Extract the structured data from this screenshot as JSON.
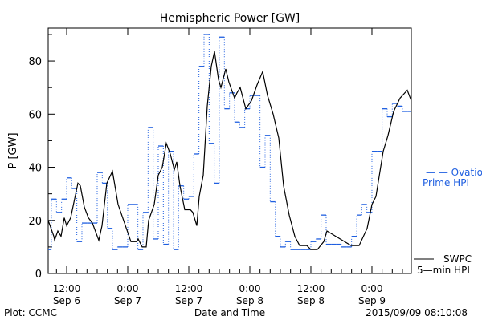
{
  "chart_data": {
    "type": "line",
    "title": "Hemispheric Power [GW]",
    "xlabel": "Date and Time",
    "ylabel": "P [GW]",
    "x_units": "hours since 2015-09-06 00:00",
    "xlim": [
      8.37,
      79.74
    ],
    "ylim": [
      0,
      92.4
    ],
    "y_ticks": [
      0,
      20,
      40,
      60,
      80
    ],
    "y_minor_step": 10,
    "x_ticks": [
      {
        "x": 12,
        "time": "12:00",
        "date": "Sep 6"
      },
      {
        "x": 24,
        "time": "0:00",
        "date": "Sep 7"
      },
      {
        "x": 36,
        "time": "12:00",
        "date": "Sep 7"
      },
      {
        "x": 48,
        "time": "0:00",
        "date": "Sep 8"
      },
      {
        "x": 60,
        "time": "12:00",
        "date": "Sep 8"
      },
      {
        "x": 72,
        "time": "0:00",
        "date": "Sep 9"
      }
    ],
    "x_minor_step": 2,
    "series": [
      {
        "name": "SWPC 5-min HPI",
        "legend": [
          "SWPC",
          "5—min HPI"
        ],
        "color": "#000000",
        "style": "solid",
        "points": [
          [
            8.37,
            20
          ],
          [
            9.47,
            14
          ],
          [
            9.63,
            12.6
          ],
          [
            10.26,
            16
          ],
          [
            10.89,
            14
          ],
          [
            11.53,
            21
          ],
          [
            12.0,
            18
          ],
          [
            12.79,
            21
          ],
          [
            14.21,
            34
          ],
          [
            14.68,
            33
          ],
          [
            15.47,
            25
          ],
          [
            16.26,
            21
          ],
          [
            17.05,
            19
          ],
          [
            18.32,
            12.5
          ],
          [
            18.95,
            18
          ],
          [
            19.89,
            34
          ],
          [
            21.0,
            38.5
          ],
          [
            22.1,
            26
          ],
          [
            23.37,
            19
          ],
          [
            24.63,
            12
          ],
          [
            25.74,
            12
          ],
          [
            26.05,
            13
          ],
          [
            26.84,
            10
          ],
          [
            27.63,
            10
          ],
          [
            28.1,
            20
          ],
          [
            29.21,
            26
          ],
          [
            30.0,
            37
          ],
          [
            30.79,
            40
          ],
          [
            31.58,
            49
          ],
          [
            32.37,
            45
          ],
          [
            33.16,
            39
          ],
          [
            33.63,
            42
          ],
          [
            34.26,
            33
          ],
          [
            34.9,
            27
          ],
          [
            35.21,
            24
          ],
          [
            36.32,
            24
          ],
          [
            36.79,
            23
          ],
          [
            37.58,
            18
          ],
          [
            38.05,
            29
          ],
          [
            38.84,
            37
          ],
          [
            39.63,
            63
          ],
          [
            40.42,
            78
          ],
          [
            41.05,
            83.6
          ],
          [
            41.84,
            73
          ],
          [
            42.32,
            70
          ],
          [
            43.26,
            77
          ],
          [
            43.89,
            72
          ],
          [
            45.0,
            66
          ],
          [
            45.47,
            68
          ],
          [
            46.1,
            70
          ],
          [
            47.21,
            62
          ],
          [
            48.32,
            65
          ],
          [
            49.42,
            71
          ],
          [
            50.53,
            76
          ],
          [
            51.47,
            67
          ],
          [
            52.58,
            60
          ],
          [
            53.68,
            51
          ],
          [
            54.63,
            33
          ],
          [
            55.74,
            22
          ],
          [
            56.84,
            14
          ],
          [
            57.79,
            10.5
          ],
          [
            59.21,
            10.5
          ],
          [
            60.0,
            9
          ],
          [
            61.26,
            9
          ],
          [
            62.53,
            12
          ],
          [
            63.16,
            16
          ],
          [
            67.9,
            10.5
          ],
          [
            69.47,
            10.5
          ],
          [
            71.05,
            17
          ],
          [
            72.0,
            26
          ],
          [
            72.79,
            29
          ],
          [
            74.21,
            46
          ],
          [
            75.16,
            52
          ],
          [
            76.26,
            61
          ],
          [
            77.53,
            66
          ],
          [
            78.95,
            69
          ],
          [
            79.74,
            65
          ]
        ]
      },
      {
        "name": "Ovation Prime HPI",
        "legend": [
          "— — Ovation",
          "Prime HPI"
        ],
        "color": "#1f5fe0",
        "style": "hourly-step",
        "step_start": 8.0,
        "step_hours": 1,
        "values": [
          9,
          28,
          23,
          28,
          36,
          32,
          12,
          19,
          19,
          19,
          38,
          34,
          17,
          9,
          10,
          10,
          26,
          26,
          9,
          23,
          55,
          13,
          48,
          11,
          46,
          9,
          33,
          28,
          29,
          45,
          78,
          90,
          49,
          34,
          89,
          62,
          68,
          57,
          55,
          62,
          67,
          67,
          40,
          52,
          27,
          14,
          10,
          12,
          9,
          9,
          9,
          9,
          12,
          13,
          22,
          11,
          11,
          11,
          10,
          10,
          14,
          22,
          26,
          23,
          46,
          46,
          62,
          59,
          64,
          63,
          61,
          61
        ]
      }
    ],
    "grid": false,
    "legend_placement": "right"
  },
  "footer": {
    "left": "Plot: CCMC",
    "center": "Date and Time",
    "right": "2015/09/09 08:10:08"
  }
}
